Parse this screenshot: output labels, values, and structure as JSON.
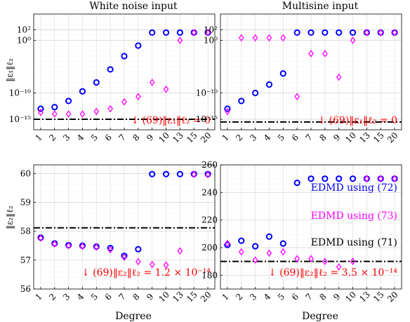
{
  "chart_data": [
    {
      "type": "scatter",
      "title": "White noise input",
      "ylabel": "‖ε₁‖ℓ₂",
      "xlabel": "",
      "x_categories": [
        "1",
        "2",
        "3",
        "4",
        "5",
        "6",
        "7",
        "8",
        "9",
        "10",
        "13",
        "15",
        "20"
      ],
      "y_scale": "log",
      "ylim": [
        1e-17,
        100000.0
      ],
      "ytick_labels": [
        {
          "value": 100,
          "label": "10²"
        },
        {
          "value": 1,
          "label": "10⁰"
        },
        {
          "value": 1e-10,
          "label": "10⁻¹⁰"
        },
        {
          "value": 1e-15,
          "label": "10⁻¹⁵"
        }
      ],
      "grid": true,
      "series": [
        {
          "marker": "circle",
          "color": "#0000ff",
          "values": [
            1e-13,
            2e-13,
            3e-12,
            2e-10,
            1e-08,
            3e-06,
            0.001,
            0.1,
            30,
            30,
            30,
            30,
            30
          ]
        },
        {
          "marker": "diamond",
          "color": "#ff00ff",
          "values": [
            2e-14,
            1e-14,
            1e-14,
            1e-14,
            3e-14,
            1e-13,
            2e-12,
            2e-11,
            1e-08,
            5e-10,
            1,
            30,
            30
          ]
        }
      ],
      "reference_line": {
        "value": 1e-15,
        "style": "dash-dot",
        "color": "#000000"
      },
      "annotation": {
        "text": "↓ (69)‖ε₁‖ℓ₂ = 0",
        "color": "#ff0000"
      }
    },
    {
      "type": "scatter",
      "title": "Multisine input",
      "ylabel": "",
      "xlabel": "",
      "x_categories": [
        "1",
        "2",
        "3",
        "4",
        "5",
        "6",
        "7",
        "8",
        "9",
        "10",
        "13",
        "15",
        "20"
      ],
      "y_scale": "log",
      "ylim": [
        1e-17,
        100000.0
      ],
      "ytick_labels": [
        {
          "value": 100,
          "label": "10²"
        },
        {
          "value": 1,
          "label": "10⁰"
        },
        {
          "value": 1e-10,
          "label": "10⁻¹⁰"
        },
        {
          "value": 1e-15,
          "label": "10⁻¹⁵"
        }
      ],
      "grid": true,
      "series": [
        {
          "marker": "circle",
          "color": "#0000ff",
          "values": [
            1e-13,
            3e-12,
            1e-10,
            4e-09,
            5e-07,
            30,
            30,
            30,
            30,
            30,
            30,
            30,
            30
          ]
        },
        {
          "marker": "diamond",
          "color": "#ff00ff",
          "values": [
            3e-14,
            3,
            3,
            3,
            3,
            2e-11,
            0.003,
            0.003,
            1e-07,
            1,
            30,
            30,
            30
          ]
        }
      ],
      "reference_line": {
        "value": 3e-16,
        "style": "dash-dot",
        "color": "#000000"
      },
      "annotation": {
        "text": "↓ (69)‖ε₁‖ℓ₂ = 0",
        "color": "#ff0000"
      }
    },
    {
      "type": "scatter",
      "title": "",
      "ylabel": "‖ε₂‖ℓ₂",
      "xlabel": "Degree",
      "x_categories": [
        "1",
        "2",
        "3",
        "4",
        "5",
        "6",
        "7",
        "8",
        "9",
        "10",
        "13",
        "15",
        "20"
      ],
      "y_scale": "linear",
      "ylim": [
        56,
        60.3
      ],
      "yticks": [
        56,
        57,
        58,
        59,
        60
      ],
      "grid": true,
      "series": [
        {
          "marker": "circle",
          "color": "#0000ff",
          "values": [
            57.78,
            57.58,
            57.52,
            57.5,
            57.47,
            57.42,
            57.15,
            57.38,
            59.98,
            59.98,
            59.98,
            59.98,
            59.98
          ]
        },
        {
          "marker": "diamond",
          "color": "#ff00ff",
          "values": [
            57.76,
            57.56,
            57.5,
            57.48,
            57.45,
            57.36,
            57.1,
            56.95,
            56.85,
            56.83,
            57.32,
            59.97,
            59.96
          ]
        }
      ],
      "reference_line": {
        "value": 58.12,
        "style": "dash-dot",
        "color": "#000000"
      },
      "annotation": {
        "text": "↓ (69)‖ε₂‖ℓ₂ = 1.2 × 10⁻¹⁴",
        "color": "#ff0000"
      }
    },
    {
      "type": "scatter",
      "title": "",
      "ylabel": "",
      "xlabel": "Degree",
      "x_categories": [
        "1",
        "2",
        "3",
        "4",
        "5",
        "6",
        "7",
        "8",
        "9",
        "10",
        "13",
        "15",
        "20"
      ],
      "y_scale": "linear",
      "ylim": [
        170,
        260
      ],
      "yticks": [
        180,
        200,
        220,
        240,
        260
      ],
      "grid": true,
      "series": [
        {
          "marker": "circle",
          "color": "#0000ff",
          "values": [
            202,
            205,
            201,
            208,
            203,
            247,
            250,
            250,
            250,
            250,
            250,
            250,
            250
          ]
        },
        {
          "marker": "diamond",
          "color": "#ff00ff",
          "values": [
            203,
            197,
            191,
            196,
            197,
            192,
            192,
            190,
            186,
            190,
            250,
            250,
            250
          ]
        }
      ],
      "reference_line": {
        "value": 190,
        "style": "dash-dot",
        "color": "#000000"
      },
      "annotation": {
        "text": "↓ (69)‖ε₂‖ℓ₂ = 3.5 × 10⁻¹⁴",
        "color": "#ff0000"
      },
      "legend_texts": [
        {
          "text": "EDMD using (72)",
          "color": "#0000ff"
        },
        {
          "text": "EDMD using (73)",
          "color": "#ff00ff"
        },
        {
          "text": "EDMD using (71)",
          "color": "#000000"
        }
      ]
    }
  ]
}
